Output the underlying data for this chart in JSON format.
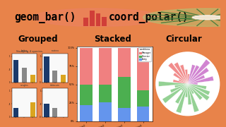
{
  "bg_color": "#E8834A",
  "title_bg": "#FFFFFF",
  "title_fontsize": 10.5,
  "subtitle_labels": [
    "Grouped",
    "Stacked",
    "Circular"
  ],
  "subtitle_fontsize": 8.5,
  "subtitle_color": "#000000",
  "grouped_bar_colors": [
    "#1B3A6B",
    "#888888",
    "#DAA520"
  ],
  "stacked_colors": [
    "#F08080",
    "#4CAF50",
    "#6495ED"
  ],
  "stacked_legend": [
    "Manager",
    "Director",
    "Entry"
  ],
  "circular_colors": [
    "#DA70D6",
    "#F08080",
    "#90EE90"
  ],
  "bar_icon_color": "#F08080",
  "polar_icon_color": "#90EE90",
  "panel_bg": "#FFFFFF",
  "panel_inner_bg": "#F5F5F5"
}
